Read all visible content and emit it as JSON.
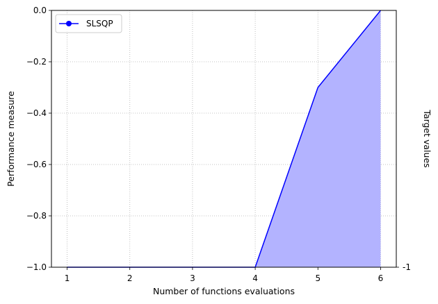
{
  "chart_data": {
    "type": "area",
    "xlabel": "Number of functions evaluations",
    "ylabel": "Performance measure",
    "right_ylabel": "Target values",
    "xlim": [
      0.75,
      6.25
    ],
    "ylim": [
      -1.0,
      0.0
    ],
    "x_ticks": [
      1,
      2,
      3,
      4,
      5,
      6
    ],
    "x_tick_labels": [
      "1",
      "2",
      "3",
      "4",
      "5",
      "6"
    ],
    "y_ticks": [
      -1.0,
      -0.8,
      -0.6,
      -0.4,
      -0.2,
      0.0
    ],
    "y_tick_labels": [
      "−1.0",
      "−0.8",
      "−0.6",
      "−0.4",
      "−0.2",
      "0.0"
    ],
    "grid": true,
    "legend_position": "top-left",
    "series": [
      {
        "name": "SLSQP",
        "x": [
          1,
          2,
          3,
          4,
          5,
          6
        ],
        "y": [
          -1.0,
          -1.0,
          -1.0,
          -1.0,
          -0.3,
          0.0
        ],
        "color": "#0000ff",
        "fill_color": "#b3b3ff",
        "marker": "circle"
      }
    ],
    "target_values": [
      {
        "value": -1.0,
        "label": "-1",
        "color": "#ff0000"
      }
    ]
  }
}
